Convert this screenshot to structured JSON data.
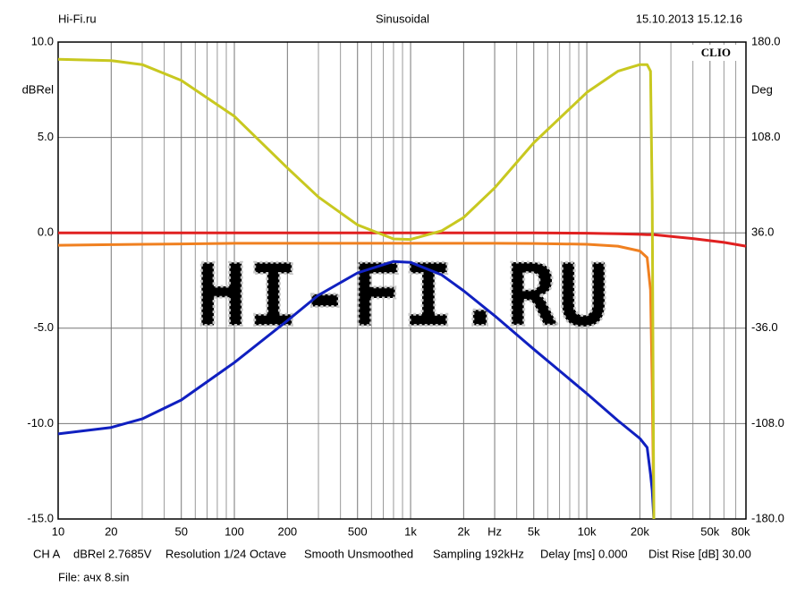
{
  "chart_data": {
    "type": "line",
    "header": [
      "Hi-Fi.ru",
      "Sinusoidal",
      "15.10.2013 15.12.16"
    ],
    "badge": "CLIO",
    "watermark": "HI-FI.RU",
    "ylabel": "dBRel",
    "y2label": "Deg",
    "footer": [
      "CH A",
      "dBRel 2.7685V",
      "Resolution 1/24 Octave",
      "Smooth Unsmoothed",
      "Sampling 192kHz",
      "Delay [ms] 0.000",
      "Dist Rise [dB] 30.00"
    ],
    "file": "File: ачх 8.sin",
    "xscale": "log",
    "grid": true,
    "xlim": [
      10,
      80000
    ],
    "xticks": [
      10,
      20,
      50,
      100,
      200,
      500,
      {
        "value": 1000,
        "label": "1k"
      },
      {
        "value": 2000,
        "label": "2k"
      },
      {
        "value": 3000,
        "label": "Hz"
      },
      {
        "value": 5000,
        "label": "5k"
      },
      {
        "value": 10000,
        "label": "10k"
      },
      {
        "value": 20000,
        "label": "20k"
      },
      {
        "value": 50000,
        "label": "50k"
      },
      {
        "value": 80000,
        "label": "80k"
      }
    ],
    "xminor": [
      30,
      40,
      60,
      70,
      80,
      90,
      300,
      400,
      600,
      700,
      800,
      900,
      4000,
      6000,
      7000,
      8000,
      9000,
      30000,
      40000,
      60000,
      70000
    ],
    "ylim": [
      -15,
      10
    ],
    "yticks": [
      {
        "value": 10,
        "label": "10.0"
      },
      {
        "value": 5,
        "label": "5.0"
      },
      {
        "value": 0,
        "label": "0.0"
      },
      {
        "value": -5,
        "label": "-5.0"
      },
      {
        "value": -10,
        "label": "-10.0"
      },
      {
        "value": -15,
        "label": "-15.0"
      }
    ],
    "y2lim": [
      -180,
      180
    ],
    "y2ticks": [
      {
        "value": 180,
        "label": "180.0"
      },
      {
        "value": 108,
        "label": "108.0"
      },
      {
        "value": 36,
        "label": "36.0"
      },
      {
        "value": -36,
        "label": "-36.0"
      },
      {
        "value": -108,
        "label": "-108.0"
      },
      {
        "value": -180,
        "label": "-180.0"
      }
    ],
    "x": [
      10,
      20,
      30,
      50,
      100,
      200,
      300,
      500,
      800,
      1000,
      1500,
      2000,
      3000,
      5000,
      10000,
      15000,
      20000,
      22000,
      23000,
      23500,
      24000,
      40000,
      60000,
      80000
    ],
    "series": [
      {
        "color": "#e02020",
        "values": [
          0,
          0,
          0,
          0,
          0,
          0,
          0,
          0,
          0,
          0,
          0,
          0,
          0,
          0,
          -0.02,
          -0.05,
          -0.08,
          -0.1,
          -0.1,
          -0.1,
          -0.1,
          -0.3,
          -0.5,
          -0.7
        ]
      },
      {
        "color": "#f08020",
        "values": [
          -0.65,
          -0.62,
          -0.6,
          -0.58,
          -0.55,
          -0.55,
          -0.55,
          -0.55,
          -0.55,
          -0.55,
          -0.55,
          -0.55,
          -0.55,
          -0.56,
          -0.6,
          -0.7,
          -0.95,
          -1.3,
          -3,
          -8,
          -15,
          null,
          null,
          null
        ]
      },
      {
        "color": "#1020c0",
        "values": [
          -10.54,
          -10.2,
          -9.75,
          -8.76,
          -6.8,
          -4.6,
          -3.27,
          -2.1,
          -1.5,
          -1.55,
          -2.2,
          -3.04,
          -4.35,
          -6.1,
          -8.43,
          -9.84,
          -10.78,
          -11.25,
          -12.66,
          -13.5,
          -15,
          null,
          null,
          null
        ]
      },
      {
        "color": "#c8c820",
        "axis": "y2",
        "values": [
          167,
          166,
          163,
          151,
          124,
          85,
          63,
          42,
          31.4,
          31,
          37.5,
          47.6,
          70,
          104,
          142,
          158,
          163,
          163,
          158,
          60,
          -180,
          null,
          null,
          null
        ]
      }
    ]
  }
}
